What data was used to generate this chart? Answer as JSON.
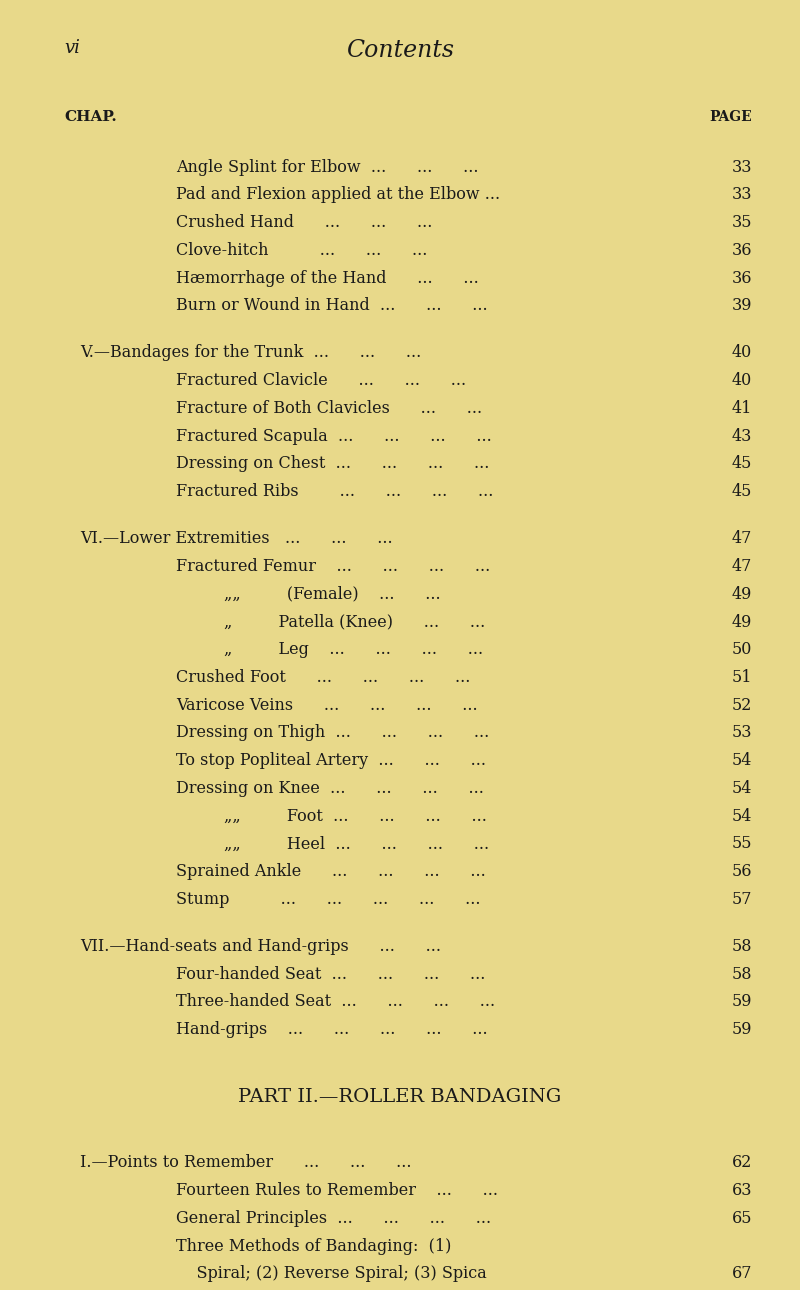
{
  "bg_color": "#e8d98a",
  "text_color": "#1a1a1a",
  "page_header_left": "vi",
  "page_header_center": "Contents",
  "chap_label": "CHAP.",
  "page_label": "PAGE",
  "lines": [
    {
      "indent": 1,
      "text": "Angle Splint for Elbow  ...      ...      ...",
      "page": "33",
      "style": "normal"
    },
    {
      "indent": 1,
      "text": "Pad and Flexion applied at the Elbow ...",
      "page": "33",
      "style": "normal"
    },
    {
      "indent": 1,
      "text": "Crushed Hand      ...      ...      ...",
      "page": "35",
      "style": "normal"
    },
    {
      "indent": 1,
      "text": "Clove-hitch          ...      ...      ...",
      "page": "36",
      "style": "normal"
    },
    {
      "indent": 1,
      "text": "Hæmorrhage of the Hand      ...      ...",
      "page": "36",
      "style": "normal"
    },
    {
      "indent": 1,
      "text": "Burn or Wound in Hand  ...      ...      ...",
      "page": "39",
      "style": "normal"
    },
    {
      "indent": 0,
      "text": "",
      "page": "",
      "style": "blank"
    },
    {
      "indent": 0,
      "text": "V.—Bandages for the Trunk  ...      ...      ...",
      "page": "40",
      "style": "section"
    },
    {
      "indent": 1,
      "text": "Fractured Clavicle      ...      ...      ...",
      "page": "40",
      "style": "normal"
    },
    {
      "indent": 1,
      "text": "Fracture of Both Clavicles      ...      ...",
      "page": "41",
      "style": "normal"
    },
    {
      "indent": 1,
      "text": "Fractured Scapula  ...      ...      ...      ...",
      "page": "43",
      "style": "normal"
    },
    {
      "indent": 1,
      "text": "Dressing on Chest  ...      ...      ...      ...",
      "page": "45",
      "style": "normal"
    },
    {
      "indent": 1,
      "text": "Fractured Ribs        ...      ...      ...      ...",
      "page": "45",
      "style": "normal"
    },
    {
      "indent": 0,
      "text": "",
      "page": "",
      "style": "blank"
    },
    {
      "indent": 0,
      "text": "VI.—Lower Extremities   ...      ...      ...",
      "page": "47",
      "style": "section"
    },
    {
      "indent": 1,
      "text": "Fractured Femur    ...      ...      ...      ...",
      "page": "47",
      "style": "normal"
    },
    {
      "indent": 2,
      "text": "„„         (Female)    ...      ...",
      "page": "49",
      "style": "normal"
    },
    {
      "indent": 2,
      "text": "„         Patella (Knee)      ...      ...",
      "page": "49",
      "style": "normal"
    },
    {
      "indent": 2,
      "text": "„         Leg    ...      ...      ...      ...",
      "page": "50",
      "style": "normal"
    },
    {
      "indent": 1,
      "text": "Crushed Foot      ...      ...      ...      ...",
      "page": "51",
      "style": "normal"
    },
    {
      "indent": 1,
      "text": "Varicose Veins      ...      ...      ...      ...",
      "page": "52",
      "style": "normal"
    },
    {
      "indent": 1,
      "text": "Dressing on Thigh  ...      ...      ...      ...",
      "page": "53",
      "style": "normal"
    },
    {
      "indent": 1,
      "text": "To stop Popliteal Artery  ...      ...      ...",
      "page": "54",
      "style": "normal"
    },
    {
      "indent": 1,
      "text": "Dressing on Knee  ...      ...      ...      ...",
      "page": "54",
      "style": "normal"
    },
    {
      "indent": 2,
      "text": "„„         Foot  ...      ...      ...      ...",
      "page": "54",
      "style": "normal"
    },
    {
      "indent": 2,
      "text": "„„         Heel  ...      ...      ...      ...",
      "page": "55",
      "style": "normal"
    },
    {
      "indent": 1,
      "text": "Sprained Ankle      ...      ...      ...      ...",
      "page": "56",
      "style": "normal"
    },
    {
      "indent": 1,
      "text": "Stump          ...      ...      ...      ...      ...",
      "page": "57",
      "style": "normal"
    },
    {
      "indent": 0,
      "text": "",
      "page": "",
      "style": "blank"
    },
    {
      "indent": 0,
      "text": "VII.—Hand-seats and Hand-grips      ...      ...",
      "page": "58",
      "style": "section"
    },
    {
      "indent": 1,
      "text": "Four-handed Seat  ...      ...      ...      ...",
      "page": "58",
      "style": "normal"
    },
    {
      "indent": 1,
      "text": "Three-handed Seat  ...      ...      ...      ...",
      "page": "59",
      "style": "normal"
    },
    {
      "indent": 1,
      "text": "Hand-grips    ...      ...      ...      ...      ...",
      "page": "59",
      "style": "normal"
    },
    {
      "indent": 0,
      "text": "",
      "page": "",
      "style": "blank"
    },
    {
      "indent": 0,
      "text": "",
      "page": "",
      "style": "blank"
    },
    {
      "indent": 0,
      "text": "PART II.—ROLLER BANDAGING",
      "page": "",
      "style": "part"
    },
    {
      "indent": 0,
      "text": "",
      "page": "",
      "style": "blank"
    },
    {
      "indent": 0,
      "text": "I.—Points to Remember      ...      ...      ...",
      "page": "62",
      "style": "section"
    },
    {
      "indent": 1,
      "text": "Fourteen Rules to Remember    ...      ...",
      "page": "63",
      "style": "normal"
    },
    {
      "indent": 1,
      "text": "General Principles  ...      ...      ...      ...",
      "page": "65",
      "style": "normal"
    },
    {
      "indent": 1,
      "text": "Three Methods of Bandaging:  (1)",
      "page": "",
      "style": "normal"
    },
    {
      "indent": 1,
      "text": "    Spiral; (2) Reverse Spiral; (3) Spica",
      "page": "67",
      "style": "normal"
    }
  ]
}
